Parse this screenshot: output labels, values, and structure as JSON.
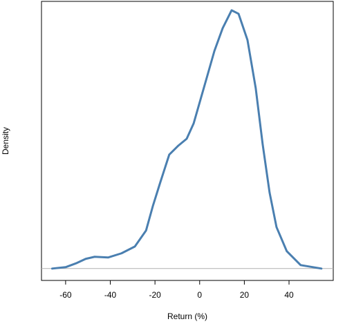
{
  "chart_data": {
    "type": "line",
    "x_label": "Return (%)",
    "y_label": "Density",
    "x": [
      -66,
      -60,
      -55,
      -51,
      -47,
      -41,
      -35,
      -29,
      -24,
      -21,
      -17.6,
      -13.6,
      -9.5,
      -5.8,
      -2.7,
      0.4,
      3.5,
      6.6,
      10.3,
      14.3,
      17.4,
      21.4,
      25.1,
      28.2,
      31.3,
      34.4,
      39,
      45.2,
      54.5
    ],
    "series": [
      {
        "color": "#4a7fb0",
        "values": [
          0,
          0.00014,
          0.00056,
          0.00098,
          0.00119,
          0.00112,
          0.00154,
          0.00223,
          0.00384,
          0.00628,
          0.00873,
          0.01152,
          0.01243,
          0.01312,
          0.01466,
          0.0171,
          0.01954,
          0.02199,
          0.02429,
          0.0261,
          0.02575,
          0.0231,
          0.01822,
          0.01256,
          0.00768,
          0.00419,
          0.00175,
          0.00035,
          0
        ]
      }
    ],
    "xlim": [
      -70.8,
      59.8
    ],
    "xticks": [
      -60,
      -40,
      -20,
      0,
      20,
      40
    ],
    "ylim": [
      -0.0012,
      0.027
    ],
    "baseline": 0,
    "baseline_color": "#b0b0b0"
  }
}
